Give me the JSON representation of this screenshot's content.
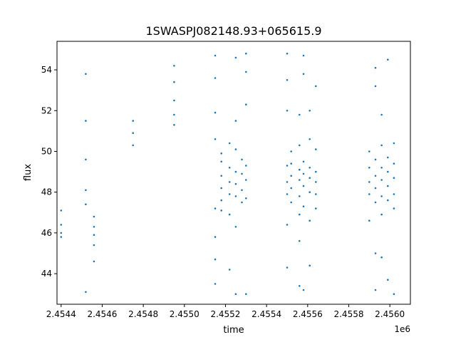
{
  "chart_data": {
    "type": "scatter",
    "title": "1SWASPJ082148.93+065615.9",
    "xlabel": "time",
    "ylabel": "flux",
    "x_offset_label": "1e6",
    "xlim": [
      2454380,
      2456100
    ],
    "ylim": [
      42.5,
      55.4
    ],
    "x_ticks": [
      2454400,
      2454600,
      2454800,
      2455000,
      2455200,
      2455400,
      2455600,
      2455800,
      2456000
    ],
    "x_tick_labels": [
      "2.4544",
      "2.4546",
      "2.4548",
      "2.4550",
      "2.4552",
      "2.4554",
      "2.4556",
      "2.4558",
      "2.4560"
    ],
    "y_ticks": [
      44,
      46,
      48,
      50,
      52,
      54
    ],
    "y_tick_labels": [
      "44",
      "46",
      "48",
      "50",
      "52",
      "54"
    ],
    "grid": false,
    "marker_color": "#1f77b4",
    "series": [
      {
        "points": [
          [
            2454400,
            45.8
          ],
          [
            2454400,
            46.0
          ],
          [
            2454400,
            46.4
          ],
          [
            2454400,
            47.1
          ],
          [
            2454520,
            53.8
          ],
          [
            2454520,
            51.5
          ],
          [
            2454520,
            49.6
          ],
          [
            2454520,
            48.1
          ],
          [
            2454520,
            47.4
          ],
          [
            2454520,
            43.1
          ],
          [
            2454560,
            46.8
          ],
          [
            2454560,
            46.3
          ],
          [
            2454560,
            45.9
          ],
          [
            2454560,
            45.4
          ],
          [
            2454560,
            44.6
          ],
          [
            2454750,
            51.5
          ],
          [
            2454750,
            50.9
          ],
          [
            2454750,
            50.3
          ],
          [
            2454950,
            54.2
          ],
          [
            2454950,
            53.4
          ],
          [
            2454950,
            52.5
          ],
          [
            2454950,
            51.8
          ],
          [
            2454950,
            51.3
          ],
          [
            2455150,
            54.7
          ],
          [
            2455150,
            53.6
          ],
          [
            2455150,
            51.9
          ],
          [
            2455150,
            50.6
          ],
          [
            2455150,
            47.2
          ],
          [
            2455150,
            45.8
          ],
          [
            2455150,
            44.7
          ],
          [
            2455150,
            43.5
          ],
          [
            2455180,
            49.5
          ],
          [
            2455180,
            48.8
          ],
          [
            2455180,
            48.2
          ],
          [
            2455180,
            47.6
          ],
          [
            2455180,
            49.9
          ],
          [
            2455180,
            47.1
          ],
          [
            2455220,
            48.5
          ],
          [
            2455220,
            49.2
          ],
          [
            2455220,
            47.9
          ],
          [
            2455220,
            50.4
          ],
          [
            2455220,
            46.9
          ],
          [
            2455220,
            44.2
          ],
          [
            2455250,
            54.6
          ],
          [
            2455250,
            51.5
          ],
          [
            2455250,
            49.0
          ],
          [
            2455250,
            48.4
          ],
          [
            2455250,
            47.8
          ],
          [
            2455250,
            50.1
          ],
          [
            2455250,
            46.3
          ],
          [
            2455250,
            43.0
          ],
          [
            2455280,
            48.9
          ],
          [
            2455280,
            48.1
          ],
          [
            2455280,
            49.6
          ],
          [
            2455280,
            47.5
          ],
          [
            2455300,
            54.8
          ],
          [
            2455300,
            53.9
          ],
          [
            2455300,
            52.3
          ],
          [
            2455300,
            48.6
          ],
          [
            2455300,
            47.7
          ],
          [
            2455300,
            49.3
          ],
          [
            2455300,
            43.0
          ],
          [
            2455500,
            54.8
          ],
          [
            2455500,
            53.5
          ],
          [
            2455500,
            52.0
          ],
          [
            2455500,
            48.5
          ],
          [
            2455500,
            47.9
          ],
          [
            2455500,
            49.3
          ],
          [
            2455500,
            46.4
          ],
          [
            2455500,
            44.3
          ],
          [
            2455520,
            48.8
          ],
          [
            2455520,
            48.2
          ],
          [
            2455520,
            49.4
          ],
          [
            2455520,
            47.5
          ],
          [
            2455520,
            50.0
          ],
          [
            2455560,
            51.8
          ],
          [
            2455560,
            48.6
          ],
          [
            2455560,
            49.1
          ],
          [
            2455560,
            47.8
          ],
          [
            2455560,
            50.3
          ],
          [
            2455560,
            46.9
          ],
          [
            2455560,
            45.6
          ],
          [
            2455560,
            43.4
          ],
          [
            2455580,
            54.7
          ],
          [
            2455580,
            53.8
          ],
          [
            2455580,
            48.9
          ],
          [
            2455580,
            48.3
          ],
          [
            2455580,
            49.5
          ],
          [
            2455580,
            47.3
          ],
          [
            2455580,
            43.2
          ],
          [
            2455610,
            52.0
          ],
          [
            2455610,
            48.7
          ],
          [
            2455610,
            49.2
          ],
          [
            2455610,
            48.0
          ],
          [
            2455610,
            50.6
          ],
          [
            2455610,
            46.6
          ],
          [
            2455610,
            44.4
          ],
          [
            2455640,
            53.2
          ],
          [
            2455640,
            48.5
          ],
          [
            2455640,
            49.0
          ],
          [
            2455640,
            47.9
          ],
          [
            2455640,
            50.1
          ],
          [
            2455640,
            47.2
          ],
          [
            2455900,
            49.2
          ],
          [
            2455900,
            48.5
          ],
          [
            2455900,
            47.9
          ],
          [
            2455900,
            50.0
          ],
          [
            2455900,
            46.6
          ],
          [
            2455930,
            54.1
          ],
          [
            2455930,
            53.2
          ],
          [
            2455930,
            48.8
          ],
          [
            2455930,
            48.2
          ],
          [
            2455930,
            49.6
          ],
          [
            2455930,
            47.5
          ],
          [
            2455930,
            45.0
          ],
          [
            2455930,
            43.2
          ],
          [
            2455960,
            51.8
          ],
          [
            2455960,
            48.6
          ],
          [
            2455960,
            49.2
          ],
          [
            2455960,
            47.8
          ],
          [
            2455960,
            50.3
          ],
          [
            2455960,
            46.9
          ],
          [
            2455960,
            44.8
          ],
          [
            2455990,
            54.5
          ],
          [
            2455990,
            49.0
          ],
          [
            2455990,
            48.3
          ],
          [
            2455990,
            49.7
          ],
          [
            2455990,
            47.6
          ],
          [
            2455990,
            43.7
          ],
          [
            2456020,
            48.7
          ],
          [
            2456020,
            49.4
          ],
          [
            2456020,
            47.9
          ],
          [
            2456020,
            50.4
          ],
          [
            2456020,
            47.2
          ],
          [
            2456020,
            43.0
          ]
        ]
      }
    ]
  }
}
